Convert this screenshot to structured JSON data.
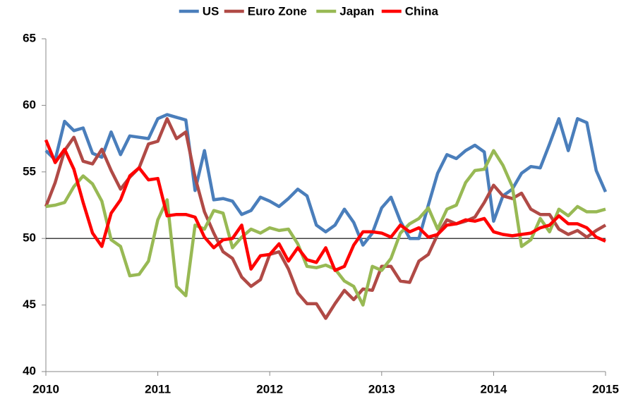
{
  "chart_data": {
    "type": "line",
    "x": [
      2010,
      2010.083,
      2010.167,
      2010.25,
      2010.333,
      2010.417,
      2010.5,
      2010.583,
      2010.667,
      2010.75,
      2010.833,
      2010.917,
      2011,
      2011.083,
      2011.167,
      2011.25,
      2011.333,
      2011.417,
      2011.5,
      2011.583,
      2011.667,
      2011.75,
      2011.833,
      2011.917,
      2012,
      2012.083,
      2012.167,
      2012.25,
      2012.333,
      2012.417,
      2012.5,
      2012.583,
      2012.667,
      2012.75,
      2012.833,
      2012.917,
      2013,
      2013.083,
      2013.167,
      2013.25,
      2013.333,
      2013.417,
      2013.5,
      2013.583,
      2013.667,
      2013.75,
      2013.833,
      2013.917,
      2014,
      2014.083,
      2014.167,
      2014.25,
      2014.333,
      2014.417,
      2014.5,
      2014.583,
      2014.667,
      2014.75,
      2014.833,
      2014.917,
      2015
    ],
    "series": [
      {
        "name": "US",
        "color": "#4a7ebb",
        "values": [
          56.6,
          55.9,
          58.8,
          58.1,
          58.3,
          56.4,
          56.1,
          58.0,
          56.3,
          57.7,
          57.6,
          57.5,
          59.0,
          59.3,
          59.1,
          58.9,
          53.6,
          56.6,
          52.9,
          53.0,
          52.8,
          51.8,
          52.1,
          53.1,
          52.8,
          52.4,
          53.0,
          53.7,
          53.2,
          51.0,
          50.5,
          51.0,
          52.2,
          51.2,
          49.5,
          50.4,
          52.3,
          53.1,
          51.3,
          50.0,
          50.0,
          52.5,
          54.9,
          56.3,
          56.0,
          56.6,
          57.0,
          56.5,
          51.3,
          53.2,
          53.7,
          54.9,
          55.4,
          55.3,
          57.1,
          59.0,
          56.6,
          59.0,
          58.7,
          55.1,
          53.5
        ]
      },
      {
        "name": "Euro Zone",
        "color": "#b04a46",
        "values": [
          52.4,
          54.2,
          56.6,
          57.6,
          55.8,
          55.6,
          56.7,
          55.1,
          53.7,
          54.6,
          55.3,
          57.1,
          57.3,
          59.0,
          57.5,
          58.0,
          54.6,
          52.0,
          50.4,
          49.0,
          48.5,
          47.1,
          46.4,
          46.9,
          48.8,
          49.0,
          47.7,
          45.9,
          45.1,
          45.1,
          44.0,
          45.1,
          46.1,
          45.4,
          46.2,
          46.1,
          47.9,
          47.9,
          46.8,
          46.7,
          48.3,
          48.8,
          50.3,
          51.4,
          51.1,
          51.3,
          51.6,
          52.7,
          54.0,
          53.2,
          53.0,
          53.4,
          52.2,
          51.8,
          51.8,
          50.7,
          50.3,
          50.6,
          50.1,
          50.6,
          51.0
        ]
      },
      {
        "name": "Japan",
        "color": "#98b954",
        "values": [
          52.4,
          52.5,
          52.7,
          53.9,
          54.7,
          54.1,
          52.8,
          49.9,
          49.4,
          47.2,
          47.3,
          48.3,
          51.4,
          52.9,
          46.4,
          45.7,
          51.0,
          50.7,
          52.1,
          51.9,
          49.3,
          50.1,
          50.7,
          50.4,
          50.8,
          50.6,
          50.7,
          49.6,
          47.9,
          47.8,
          48.0,
          47.7,
          46.8,
          46.4,
          45.0,
          47.9,
          47.6,
          48.5,
          50.4,
          51.1,
          51.5,
          52.3,
          50.7,
          52.2,
          52.5,
          54.2,
          55.1,
          55.2,
          56.6,
          55.5,
          53.9,
          49.4,
          49.9,
          51.5,
          50.5,
          52.2,
          51.7,
          52.4,
          52.0,
          52.0,
          52.2
        ]
      },
      {
        "name": "China",
        "color": "#ff0000",
        "values": [
          57.4,
          55.7,
          56.7,
          55.2,
          52.7,
          50.4,
          49.4,
          51.9,
          52.9,
          54.7,
          55.3,
          54.4,
          54.5,
          51.7,
          51.8,
          51.8,
          51.6,
          50.1,
          49.3,
          49.9,
          50.0,
          51.0,
          47.7,
          48.7,
          48.8,
          49.6,
          48.3,
          49.3,
          48.4,
          48.2,
          49.3,
          47.6,
          47.9,
          49.5,
          50.5,
          50.5,
          50.4,
          50.1,
          51.0,
          50.5,
          50.8,
          50.1,
          50.3,
          51.0,
          51.1,
          51.4,
          51.3,
          51.5,
          50.5,
          50.3,
          50.2,
          50.3,
          50.4,
          50.8,
          51.0,
          51.7,
          51.1,
          51.1,
          50.8,
          50.1,
          49.8
        ]
      }
    ],
    "xlim": [
      2010,
      2015
    ],
    "xticks": [
      2010,
      2011,
      2012,
      2013,
      2014,
      2015
    ],
    "ylim": [
      40,
      65
    ],
    "yticks": [
      40,
      45,
      50,
      55,
      60,
      65
    ],
    "hline": 50,
    "legend": "top",
    "grid": false
  }
}
